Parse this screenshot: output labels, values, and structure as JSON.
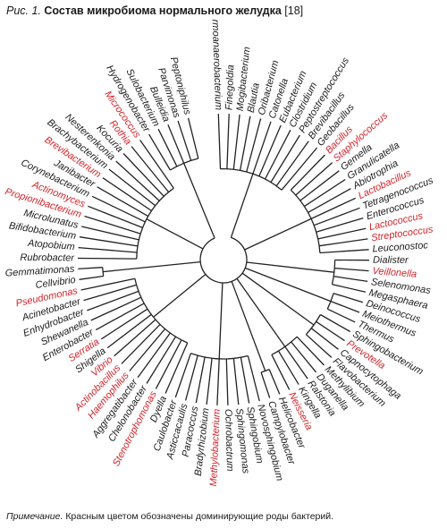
{
  "caption": {
    "label": "Рис. 1.",
    "title": "Состав микробиома нормального желудка",
    "ref": "[18]"
  },
  "note": {
    "label": "Примечание.",
    "text": "Красным цветом обозначены доминирующие роды бактерий."
  },
  "colors": {
    "dominant": "#d2232a",
    "normal": "#1a1a1a",
    "branch": "#222222"
  },
  "genera": [
    {
      "name": "Thermoanaerobacterium",
      "dominant": false
    },
    {
      "name": "Finegoldia",
      "dominant": false
    },
    {
      "name": "Mogibacterium",
      "dominant": false
    },
    {
      "name": "Blautia",
      "dominant": false
    },
    {
      "name": "Oribacterium",
      "dominant": false
    },
    {
      "name": "Catonella",
      "dominant": false
    },
    {
      "name": "Eubacterium",
      "dominant": false
    },
    {
      "name": "Clostridium",
      "dominant": false
    },
    {
      "name": "Peptostreptococcus",
      "dominant": false
    },
    {
      "name": "Brevibacillus",
      "dominant": false
    },
    {
      "name": "Geobacillus",
      "dominant": false
    },
    {
      "name": "Bacillus",
      "dominant": true
    },
    {
      "name": "Staphylococcus",
      "dominant": true
    },
    {
      "name": "Gemella",
      "dominant": false
    },
    {
      "name": "Granulicatella",
      "dominant": false
    },
    {
      "name": "Abiotrophia",
      "dominant": false
    },
    {
      "name": "Lactobacillus",
      "dominant": true
    },
    {
      "name": "Tetragenococcus",
      "dominant": false
    },
    {
      "name": "Enterococcus",
      "dominant": false
    },
    {
      "name": "Lactococcus",
      "dominant": true
    },
    {
      "name": "Streptococcus",
      "dominant": true
    },
    {
      "name": "Leuconostoc",
      "dominant": false
    },
    {
      "name": "Dialister",
      "dominant": false
    },
    {
      "name": "Veillonella",
      "dominant": true
    },
    {
      "name": "Selenomonas",
      "dominant": false
    },
    {
      "name": "Megasphaera",
      "dominant": false
    },
    {
      "name": "Deinococcus",
      "dominant": false
    },
    {
      "name": "Meiothermus",
      "dominant": false
    },
    {
      "name": "Thermus",
      "dominant": false
    },
    {
      "name": "Sphingobacterium",
      "dominant": false
    },
    {
      "name": "Prevotella",
      "dominant": true
    },
    {
      "name": "Capnocytophaga",
      "dominant": false
    },
    {
      "name": "Flavobacterium",
      "dominant": false
    },
    {
      "name": "Methylibium",
      "dominant": false
    },
    {
      "name": "Duganella",
      "dominant": false
    },
    {
      "name": "Ralstonia",
      "dominant": false
    },
    {
      "name": "Kingella",
      "dominant": false
    },
    {
      "name": "Neisseria",
      "dominant": true
    },
    {
      "name": "Helicobacter",
      "dominant": false
    },
    {
      "name": "Campylobacter",
      "dominant": false
    },
    {
      "name": "Novosphingobium",
      "dominant": false
    },
    {
      "name": "Sphingobium",
      "dominant": false
    },
    {
      "name": "Sphingomonas",
      "dominant": false
    },
    {
      "name": "Ochrobactrum",
      "dominant": false
    },
    {
      "name": "Methylobacterium",
      "dominant": true
    },
    {
      "name": "Bradyrhizobium",
      "dominant": false
    },
    {
      "name": "Paracoccus",
      "dominant": false
    },
    {
      "name": "Asticcacaulis",
      "dominant": false
    },
    {
      "name": "Caulobacter",
      "dominant": false
    },
    {
      "name": "Dyella",
      "dominant": false
    },
    {
      "name": "Stenotrophomonas",
      "dominant": true
    },
    {
      "name": "Chelonobacter",
      "dominant": false
    },
    {
      "name": "Aggregatibacter",
      "dominant": false
    },
    {
      "name": "Haemophilus",
      "dominant": true
    },
    {
      "name": "Actinobacillus",
      "dominant": true
    },
    {
      "name": "Vibrio",
      "dominant": true
    },
    {
      "name": "Shigella",
      "dominant": false
    },
    {
      "name": "Serratia",
      "dominant": true
    },
    {
      "name": "Enterobacter",
      "dominant": false
    },
    {
      "name": "Shewanella",
      "dominant": false
    },
    {
      "name": "Enhydrobacter",
      "dominant": false
    },
    {
      "name": "Acinetobacter",
      "dominant": false
    },
    {
      "name": "Pseudomonas",
      "dominant": true
    },
    {
      "name": "Cellvibrio",
      "dominant": false
    },
    {
      "name": "Gemmatimonas",
      "dominant": false
    },
    {
      "name": "Rubrobacter",
      "dominant": false
    },
    {
      "name": "Atopobium",
      "dominant": false
    },
    {
      "name": "Bifidobacterium",
      "dominant": false
    },
    {
      "name": "Microlunatus",
      "dominant": false
    },
    {
      "name": "Propionibacterium",
      "dominant": true
    },
    {
      "name": "Actinomyces",
      "dominant": true
    },
    {
      "name": "Corynebacterium",
      "dominant": false
    },
    {
      "name": "Janibacter",
      "dominant": false
    },
    {
      "name": "Brevibacterium",
      "dominant": true
    },
    {
      "name": "Brachybacterium",
      "dominant": false
    },
    {
      "name": "Nesterenkonia",
      "dominant": false
    },
    {
      "name": "Kocuria",
      "dominant": false
    },
    {
      "name": "Rothia",
      "dominant": true
    },
    {
      "name": "Micrococcus",
      "dominant": true
    },
    {
      "name": "Hydrogenobacter",
      "dominant": false
    },
    {
      "name": "Sulobacterium",
      "dominant": false
    },
    {
      "name": "Bulleidia",
      "dominant": false
    },
    {
      "name": "Parvimonas",
      "dominant": false
    },
    {
      "name": "Peptoniphilus",
      "dominant": false
    }
  ],
  "clades": [
    {
      "from": 0,
      "to": 10,
      "depth": 0.55
    },
    {
      "from": 11,
      "to": 21,
      "depth": 0.6
    },
    {
      "from": 22,
      "to": 25,
      "depth": 0.72
    },
    {
      "from": 26,
      "to": 28,
      "depth": 0.75
    },
    {
      "from": 29,
      "to": 32,
      "depth": 0.72
    },
    {
      "from": 33,
      "to": 37,
      "depth": 0.68
    },
    {
      "from": 38,
      "to": 39,
      "depth": 0.78
    },
    {
      "from": 40,
      "to": 48,
      "depth": 0.62
    },
    {
      "from": 49,
      "to": 62,
      "depth": 0.55
    },
    {
      "from": 63,
      "to": 64,
      "depth": 0.8
    },
    {
      "from": 65,
      "to": 78,
      "depth": 0.52
    },
    {
      "from": 79,
      "to": 83,
      "depth": 0.66
    }
  ]
}
